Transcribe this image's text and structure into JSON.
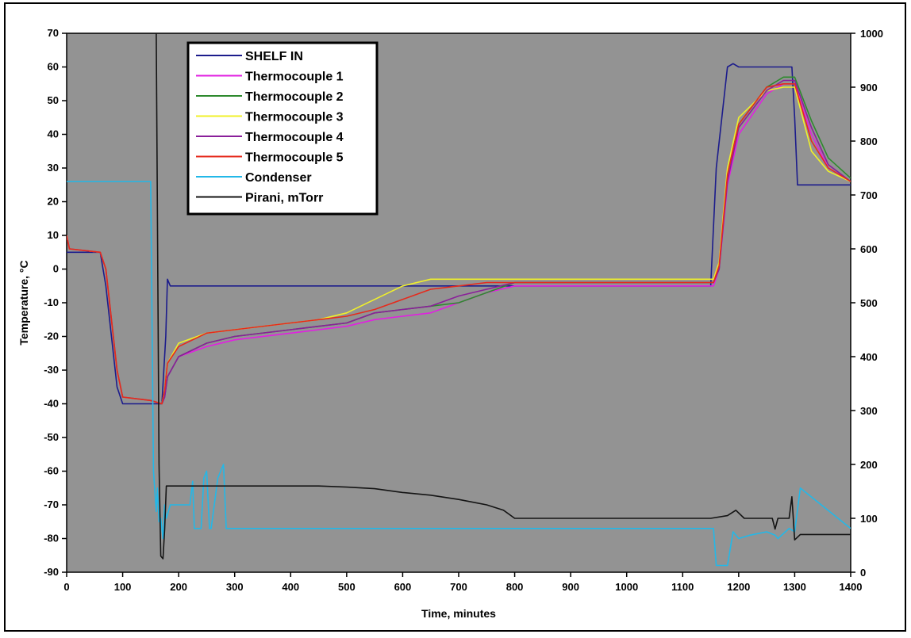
{
  "chart_data": {
    "type": "line",
    "title": "",
    "xlabel": "Time, minutes",
    "ylabel": "Temperature, °C",
    "y2label": "",
    "xlim": [
      0,
      1400
    ],
    "ylim": [
      -90,
      70
    ],
    "y2lim": [
      0,
      1000
    ],
    "x_ticks": [
      "0",
      "100",
      "200",
      "300",
      "400",
      "500",
      "600",
      "700",
      "800",
      "900",
      "1000",
      "1100",
      "1200",
      "1300",
      "1400"
    ],
    "y_ticks": [
      "70",
      "60",
      "50",
      "40",
      "30",
      "20",
      "10",
      "0",
      "-10",
      "-20",
      "-30",
      "-40",
      "-50",
      "-60",
      "-70",
      "-80",
      "-90"
    ],
    "y2_ticks": [
      "1000",
      "900",
      "800",
      "700",
      "600",
      "500",
      "400",
      "300",
      "200",
      "100",
      "0"
    ],
    "grid": false,
    "plot_background": "#939393",
    "legend_position": "top-left",
    "series": [
      {
        "name": "SHELF IN",
        "color": "#1c1c8c",
        "axis": "left",
        "x": [
          0,
          5,
          60,
          70,
          90,
          100,
          140,
          160,
          170,
          177,
          180,
          185,
          200,
          400,
          600,
          800,
          1000,
          1100,
          1150,
          1160,
          1180,
          1190,
          1200,
          1220,
          1250,
          1280,
          1295,
          1300,
          1305,
          1400
        ],
        "y": [
          5,
          5,
          5,
          -5,
          -35,
          -40,
          -40,
          -40,
          -40,
          -20,
          -3,
          -5,
          -5,
          -5,
          -5,
          -5,
          -5,
          -5,
          -5,
          30,
          60,
          61,
          60,
          60,
          60,
          60,
          60,
          45,
          25,
          25
        ]
      },
      {
        "name": "Thermocouple 1",
        "color": "#e21fe2",
        "axis": "left",
        "x": [
          0,
          5,
          60,
          70,
          90,
          100,
          150,
          170,
          175,
          180,
          200,
          250,
          300,
          400,
          450,
          500,
          550,
          600,
          650,
          700,
          750,
          800,
          1000,
          1155,
          1165,
          1180,
          1200,
          1250,
          1280,
          1300,
          1330,
          1360,
          1400
        ],
        "y": [
          10,
          6,
          5,
          0,
          -30,
          -38,
          -39,
          -40,
          -38,
          -32,
          -26,
          -23,
          -21,
          -19,
          -18,
          -17,
          -15,
          -14,
          -13,
          -10,
          -7,
          -5,
          -5,
          -5,
          0,
          25,
          40,
          52,
          55,
          55,
          40,
          30,
          26
        ]
      },
      {
        "name": "Thermocouple 2",
        "color": "#2e8a2e",
        "axis": "left",
        "x": [
          0,
          5,
          60,
          70,
          90,
          100,
          150,
          170,
          175,
          180,
          200,
          250,
          300,
          400,
          450,
          500,
          550,
          600,
          650,
          700,
          750,
          800,
          1000,
          1155,
          1165,
          1180,
          1200,
          1250,
          1280,
          1300,
          1330,
          1360,
          1400
        ],
        "y": [
          10,
          6,
          5,
          0,
          -30,
          -38,
          -39,
          -40,
          -38,
          -32,
          -26,
          -22,
          -20,
          -18,
          -17,
          -16,
          -13,
          -12,
          -11,
          -10,
          -7,
          -4,
          -4,
          -4,
          0,
          28,
          43,
          54,
          57,
          57,
          44,
          33,
          27
        ]
      },
      {
        "name": "Thermocouple 3",
        "color": "#f0f02a",
        "axis": "left",
        "x": [
          0,
          5,
          60,
          70,
          90,
          100,
          150,
          170,
          175,
          180,
          200,
          250,
          300,
          400,
          450,
          500,
          550,
          600,
          650,
          700,
          750,
          800,
          1000,
          1155,
          1165,
          1180,
          1200,
          1250,
          1280,
          1300,
          1330,
          1360,
          1400
        ],
        "y": [
          10,
          6,
          5,
          0,
          -30,
          -38,
          -39,
          -40,
          -36,
          -28,
          -22,
          -19,
          -18,
          -16,
          -15,
          -13,
          -9,
          -5,
          -3,
          -3,
          -3,
          -3,
          -3,
          -3,
          2,
          30,
          45,
          53,
          54,
          54,
          35,
          29,
          26
        ]
      },
      {
        "name": "Thermocouple 4",
        "color": "#8a1f9a",
        "axis": "left",
        "x": [
          0,
          5,
          60,
          70,
          90,
          100,
          150,
          170,
          175,
          180,
          200,
          250,
          300,
          400,
          450,
          500,
          550,
          600,
          650,
          700,
          750,
          800,
          1000,
          1155,
          1165,
          1180,
          1200,
          1250,
          1280,
          1300,
          1330,
          1360,
          1400
        ],
        "y": [
          10,
          6,
          5,
          0,
          -30,
          -38,
          -39,
          -40,
          -38,
          -32,
          -26,
          -22,
          -20,
          -18,
          -17,
          -16,
          -13,
          -12,
          -11,
          -8,
          -6,
          -4,
          -4,
          -4,
          0,
          26,
          42,
          53,
          56,
          56,
          42,
          31,
          26
        ]
      },
      {
        "name": "Thermocouple 5",
        "color": "#e62a1c",
        "axis": "left",
        "x": [
          0,
          5,
          60,
          70,
          90,
          100,
          150,
          170,
          175,
          180,
          200,
          250,
          300,
          400,
          450,
          500,
          550,
          600,
          650,
          700,
          750,
          800,
          1000,
          1155,
          1165,
          1180,
          1200,
          1250,
          1280,
          1300,
          1330,
          1360,
          1400
        ],
        "y": [
          10,
          6,
          5,
          0,
          -30,
          -38,
          -39,
          -40,
          -36,
          -28,
          -23,
          -19,
          -18,
          -16,
          -15,
          -14,
          -12,
          -9,
          -6,
          -5,
          -4,
          -4,
          -4,
          -4,
          1,
          28,
          43,
          54,
          55,
          55,
          38,
          30,
          26
        ]
      },
      {
        "name": "Condenser",
        "color": "#23b8e8",
        "axis": "left",
        "x": [
          0,
          5,
          150,
          155,
          160,
          162,
          165,
          168,
          172,
          175,
          178,
          185,
          200,
          220,
          225,
          228,
          240,
          245,
          250,
          255,
          258,
          270,
          275,
          280,
          285,
          1150,
          1155,
          1160,
          1180,
          1190,
          1200,
          1220,
          1250,
          1265,
          1270,
          1290,
          1300,
          1310,
          1400
        ],
        "y": [
          26,
          26,
          26,
          -60,
          -72,
          -65,
          -75,
          -74,
          -80,
          -70,
          -74,
          -70,
          -70,
          -70,
          -63,
          -77,
          -77,
          -62,
          -60,
          -77,
          -77,
          -62,
          -60,
          -58,
          -77,
          -77,
          -77,
          -88,
          -88,
          -78,
          -80,
          -79,
          -78,
          -79,
          -80,
          -77,
          -78,
          -65,
          -77
        ]
      },
      {
        "name": "Pirani, mTorr",
        "color": "#141414",
        "axis": "right",
        "x": [
          0,
          5,
          150,
          160,
          165,
          168,
          172,
          175,
          178,
          185,
          200,
          300,
          400,
          450,
          500,
          550,
          600,
          650,
          700,
          750,
          780,
          800,
          900,
          1000,
          1150,
          1180,
          1195,
          1210,
          1250,
          1260,
          1265,
          1270,
          1290,
          1295,
          1300,
          1310,
          1400
        ],
        "y": [
          1000,
          1000,
          1000,
          1000,
          200,
          30,
          25,
          80,
          160,
          160,
          160,
          160,
          160,
          160,
          158,
          155,
          148,
          143,
          135,
          125,
          115,
          100,
          100,
          100,
          100,
          105,
          115,
          100,
          100,
          100,
          80,
          100,
          100,
          140,
          60,
          70,
          70
        ]
      }
    ]
  }
}
